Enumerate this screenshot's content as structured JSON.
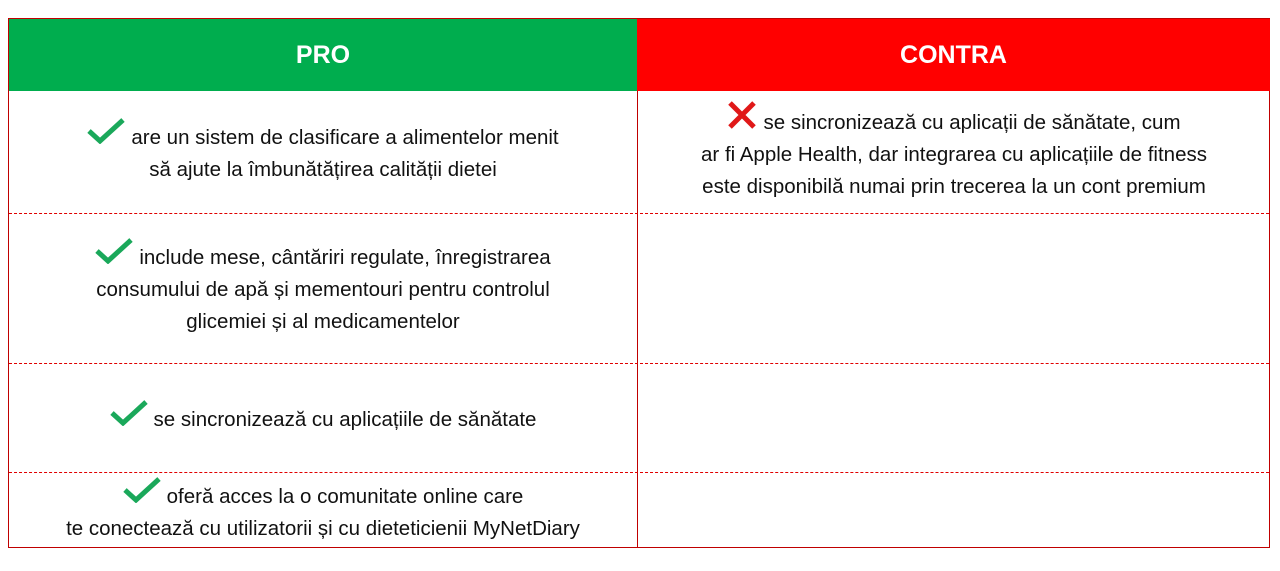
{
  "colors": {
    "pro": "#00ad4e",
    "contra": "#ff0000",
    "check": "#1aa85a",
    "cross": "#e01818",
    "border": "#c00000"
  },
  "headers": {
    "pro": "PRO",
    "contra": "CONTRA"
  },
  "rows": [
    {
      "pro": [
        "are un sistem de clasificare a alimentelor menit",
        "să ajute la îmbunătățirea calității dietei"
      ],
      "contra": [
        "se sincronizează cu aplicații de sănătate, cum",
        "ar fi Apple Health, dar integrarea cu aplicațiile de fitness",
        "este disponibilă numai prin trecerea la un cont premium"
      ]
    },
    {
      "pro": [
        "include mese, cântăriri regulate, înregistrarea",
        "consumului de apă și mementouri pentru controlul",
        "glicemiei și al medicamentelor"
      ],
      "contra": []
    },
    {
      "pro": [
        "se sincronizează cu aplicațiile de sănătate"
      ],
      "contra": []
    },
    {
      "pro": [
        "oferă acces la o comunitate online care",
        "te conectează cu utilizatorii și cu dieteticienii MyNetDiary"
      ],
      "contra": []
    }
  ],
  "icons": {
    "pro": "check-icon",
    "contra": "cross-icon"
  }
}
